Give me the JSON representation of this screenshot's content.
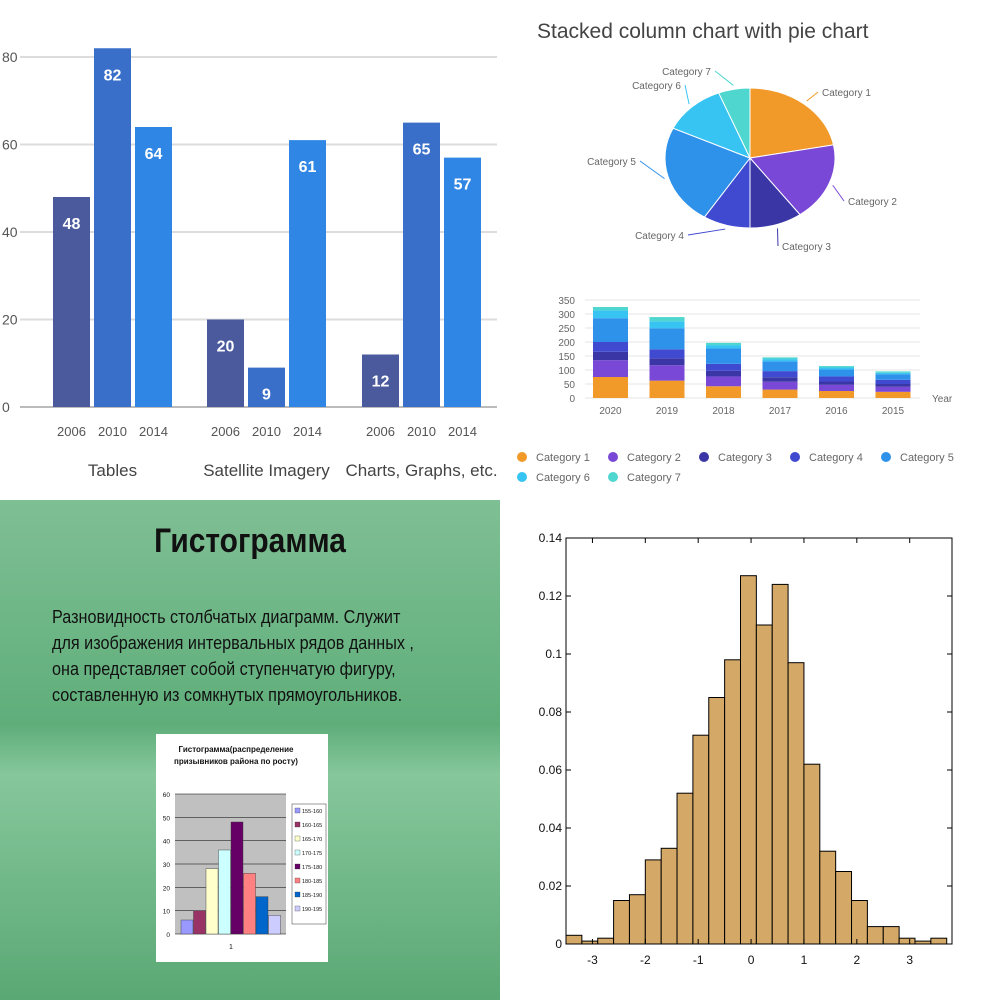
{
  "chart_data": [
    {
      "type": "bar",
      "categories": [
        "Tables",
        "Satellite Imagery",
        "Charts, Graphs, etc."
      ],
      "series": [
        {
          "name": "2006",
          "values": [
            48,
            20,
            12
          ],
          "color": "#4a5a9c"
        },
        {
          "name": "2010",
          "values": [
            82,
            9,
            65
          ],
          "color": "#3a6fc9"
        },
        {
          "name": "2014",
          "values": [
            64,
            61,
            57
          ],
          "color": "#2f86e4"
        }
      ],
      "year_labels": [
        "2006",
        "2010",
        "2014"
      ],
      "y_ticks": [
        "0",
        "20",
        "40",
        "60",
        "80"
      ],
      "ylim": [
        0,
        85
      ],
      "grid": true,
      "data_labels": true
    },
    {
      "type": "pie",
      "title": "Stacked column chart with pie chart",
      "categories": [
        "Category 1",
        "Category 2",
        "Category 3",
        "Category 4",
        "Category 5",
        "Category 6",
        "Category 7"
      ],
      "values": [
        22,
        18,
        10,
        9,
        23,
        12,
        6
      ],
      "colors": [
        "#f19a2a",
        "#7a48d6",
        "#3a36a6",
        "#3f4ad0",
        "#2f92ea",
        "#37c4f2",
        "#4fd6cf"
      ],
      "legend": "bottom"
    },
    {
      "type": "bar",
      "stacked": true,
      "categories": [
        "2020",
        "2019",
        "2018",
        "2017",
        "2016",
        "2015"
      ],
      "xlabel": "Year",
      "y_ticks": [
        "0",
        "50",
        "100",
        "150",
        "200",
        "250",
        "300",
        "350"
      ],
      "ylim": [
        0,
        350
      ],
      "series": [
        {
          "name": "Category 1",
          "values": [
            75,
            62,
            42,
            30,
            25,
            22
          ]
        },
        {
          "name": "Category 2",
          "values": [
            60,
            55,
            35,
            28,
            22,
            18
          ]
        },
        {
          "name": "Category 3",
          "values": [
            30,
            25,
            20,
            16,
            12,
            10
          ]
        },
        {
          "name": "Category 4",
          "values": [
            35,
            32,
            25,
            22,
            18,
            15
          ]
        },
        {
          "name": "Category 5",
          "values": [
            85,
            75,
            55,
            35,
            25,
            20
          ]
        },
        {
          "name": "Category 6",
          "values": [
            28,
            25,
            12,
            8,
            7,
            5
          ]
        },
        {
          "name": "Category 7",
          "values": [
            12,
            15,
            8,
            6,
            5,
            5
          ]
        }
      ],
      "grid": true
    },
    {
      "type": "bar",
      "title": "Гистограмма(распределение призывников района по росту)",
      "categories": [
        "1"
      ],
      "series": [
        {
          "name": "155-160",
          "values": [
            6
          ],
          "color": "#9999ff"
        },
        {
          "name": "160-165",
          "values": [
            10
          ],
          "color": "#993366"
        },
        {
          "name": "165-170",
          "values": [
            28
          ],
          "color": "#ffffcc"
        },
        {
          "name": "170-175",
          "values": [
            36
          ],
          "color": "#ccffff"
        },
        {
          "name": "175-180",
          "values": [
            48
          ],
          "color": "#660066"
        },
        {
          "name": "180-185",
          "values": [
            26
          ],
          "color": "#ff8080"
        },
        {
          "name": "185-190",
          "values": [
            16
          ],
          "color": "#0066cc"
        },
        {
          "name": "190-195",
          "values": [
            8
          ],
          "color": "#ccccff"
        }
      ],
      "y_ticks": [
        "0",
        "10",
        "20",
        "30",
        "40",
        "50",
        "60"
      ],
      "ylim": [
        0,
        60
      ],
      "legend": "right",
      "grid": true
    },
    {
      "type": "bar",
      "subtype": "histogram",
      "bin_edges_start": -3.5,
      "bin_width": 0.3,
      "values": [
        0.003,
        0.001,
        0.002,
        0.015,
        0.017,
        0.029,
        0.033,
        0.052,
        0.072,
        0.085,
        0.098,
        0.127,
        0.11,
        0.124,
        0.097,
        0.062,
        0.032,
        0.025,
        0.015,
        0.006,
        0.006,
        0.002,
        0.001,
        0.002
      ],
      "x_ticks": [
        "-3",
        "-2",
        "-1",
        "0",
        "1",
        "2",
        "3"
      ],
      "y_ticks": [
        "0",
        "0.02",
        "0.04",
        "0.06",
        "0.08",
        "0.1",
        "0.12",
        "0.14"
      ],
      "xlim": [
        -3.5,
        3.8
      ],
      "ylim": [
        0,
        0.14
      ],
      "color": "#d4a867"
    }
  ],
  "slide": {
    "title": "Гистограмма",
    "text": "Разновидность столбчатых диаграмм. Служит для изображения интервальных рядов данных , она представляет  собой ступенчатую фигуру, составленную из сомкнутых прямоугольников."
  }
}
